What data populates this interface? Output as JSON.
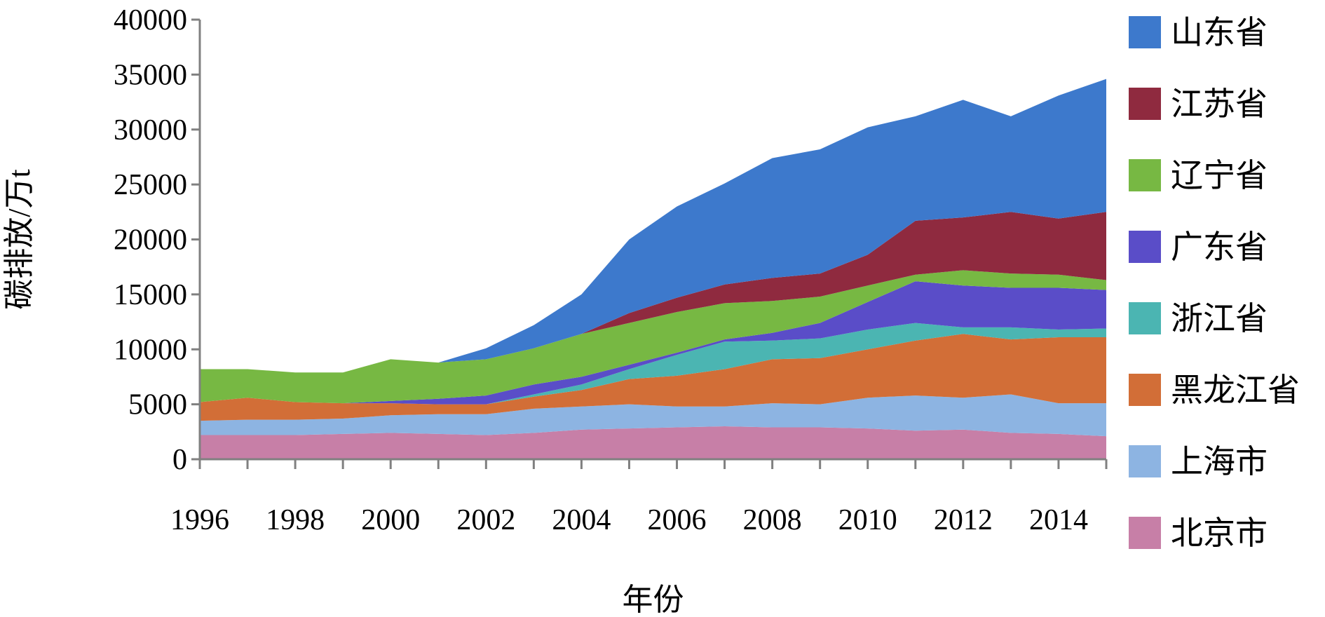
{
  "chart_data": {
    "type": "area",
    "stacked": true,
    "title": "",
    "xlabel": "年份",
    "ylabel": "碳排放/万t",
    "ylim": [
      0,
      40000
    ],
    "yticks": [
      0,
      5000,
      10000,
      15000,
      20000,
      25000,
      30000,
      35000,
      40000
    ],
    "xlim": [
      1996,
      2015
    ],
    "xtick_labels": [
      "1996",
      "1998",
      "2000",
      "2002",
      "2004",
      "2006",
      "2008",
      "2010",
      "2012",
      "2014"
    ],
    "grid": false,
    "legend_position": "right",
    "x": [
      1996,
      1997,
      1998,
      1999,
      2000,
      2001,
      2002,
      2003,
      2004,
      2005,
      2006,
      2007,
      2008,
      2009,
      2010,
      2011,
      2012,
      2013,
      2014,
      2015
    ],
    "series": [
      {
        "name": "北京市",
        "color": "#C77FA7",
        "values": [
          2200,
          2200,
          2200,
          2300,
          2400,
          2300,
          2200,
          2400,
          2700,
          2800,
          2900,
          3000,
          2900,
          2900,
          2800,
          2600,
          2700,
          2400,
          2300,
          2100
        ]
      },
      {
        "name": "上海市",
        "color": "#8DB4E2",
        "values": [
          1300,
          1400,
          1400,
          1400,
          1600,
          1800,
          1900,
          2200,
          2100,
          2200,
          1900,
          1800,
          2200,
          2100,
          2800,
          3200,
          2900,
          3500,
          2800,
          3000
        ]
      },
      {
        "name": "黑龙江省",
        "color": "#D26E37",
        "values": [
          1700,
          2000,
          1600,
          1400,
          1100,
          900,
          900,
          1100,
          1500,
          2300,
          2800,
          3400,
          4000,
          4200,
          4400,
          5000,
          5800,
          5000,
          6000,
          6000
        ]
      },
      {
        "name": "浙江省",
        "color": "#4BB5B2",
        "values": [
          0,
          0,
          0,
          0,
          0,
          0,
          0,
          200,
          500,
          900,
          1900,
          2500,
          1700,
          1800,
          1800,
          1600,
          600,
          1100,
          700,
          800
        ]
      },
      {
        "name": "广东省",
        "color": "#5A4DC8",
        "values": [
          0,
          0,
          0,
          0,
          200,
          500,
          800,
          900,
          700,
          400,
          200,
          200,
          700,
          1400,
          2500,
          3800,
          3800,
          3600,
          3800,
          3500
        ]
      },
      {
        "name": "辽宁省",
        "color": "#77B843",
        "values": [
          3000,
          2600,
          2700,
          2800,
          3800,
          3300,
          3300,
          3300,
          3900,
          3800,
          3700,
          3300,
          2900,
          2400,
          1500,
          600,
          1400,
          1300,
          1200,
          900
        ]
      },
      {
        "name": "江苏省",
        "color": "#8F2A3F",
        "values": [
          0,
          0,
          0,
          0,
          0,
          0,
          0,
          0,
          0,
          900,
          1300,
          1700,
          2100,
          2100,
          2800,
          4900,
          4800,
          5600,
          5100,
          6200
        ]
      },
      {
        "name": "山东省",
        "color": "#3D79CC",
        "values": [
          0,
          0,
          0,
          0,
          0,
          0,
          1000,
          2100,
          3600,
          6700,
          8300,
          9200,
          10900,
          11300,
          11600,
          9500,
          10700,
          8700,
          11200,
          12100
        ]
      }
    ]
  }
}
